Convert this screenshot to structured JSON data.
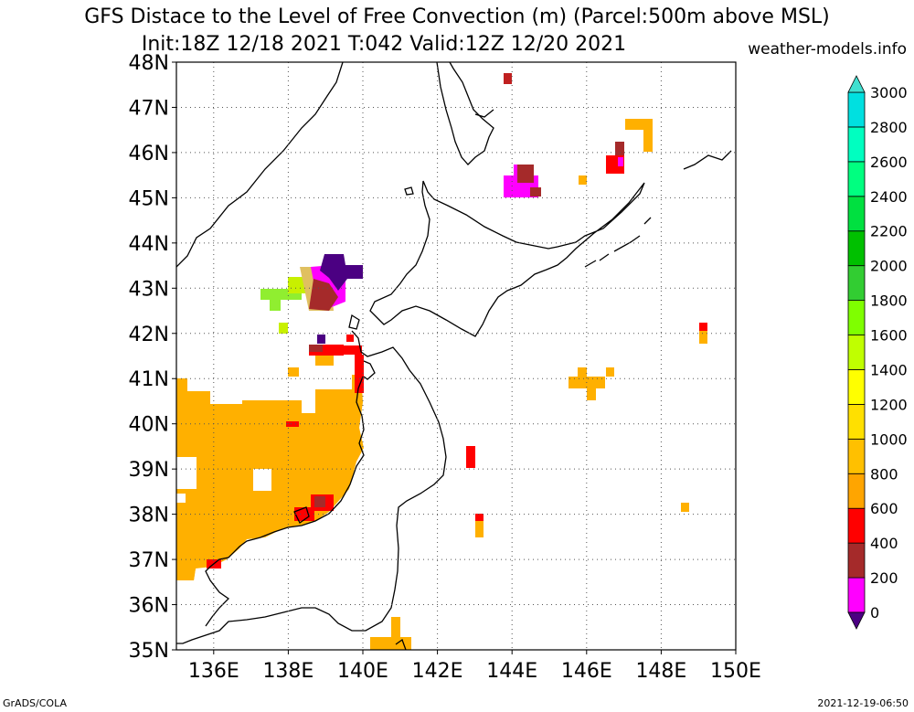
{
  "title_line1": "GFS Distace to the Level of Free Convection (m) (Parcel:500m above MSL)",
  "title_line2": "Init:18Z 12/18 2021 T:042 Valid:12Z 12/20 2021",
  "brand": "weather-models.info",
  "footer_left": "GrADS/COLA",
  "footer_right": "2021-12-19-06:50",
  "map": {
    "lon_range": [
      135,
      150
    ],
    "lat_range": [
      35,
      48
    ],
    "lon_ticks": [
      "136E",
      "138E",
      "140E",
      "142E",
      "144E",
      "146E",
      "148E",
      "150E"
    ],
    "lat_ticks": [
      "35N",
      "36N",
      "37N",
      "38N",
      "39N",
      "40N",
      "41N",
      "42N",
      "43N",
      "44N",
      "45N",
      "46N",
      "47N",
      "48N"
    ],
    "grid": "dotted"
  },
  "colorbar": {
    "labels": [
      "0",
      "200",
      "400",
      "600",
      "800",
      "1000",
      "1200",
      "1400",
      "1600",
      "1800",
      "2000",
      "2200",
      "2400",
      "2600",
      "2800",
      "3000"
    ],
    "colors": [
      "#4b0082",
      "#ff00ff",
      "#a52a2a",
      "#ff0000",
      "#ffa500",
      "#ffc000",
      "#ffe000",
      "#ffff00",
      "#c0ff00",
      "#7fff00",
      "#32cd32",
      "#00c000",
      "#00e040",
      "#00ff80",
      "#00ffc0",
      "#00e0e0"
    ],
    "min_color": "#4b0082",
    "max_color": "#40e0d0"
  }
}
